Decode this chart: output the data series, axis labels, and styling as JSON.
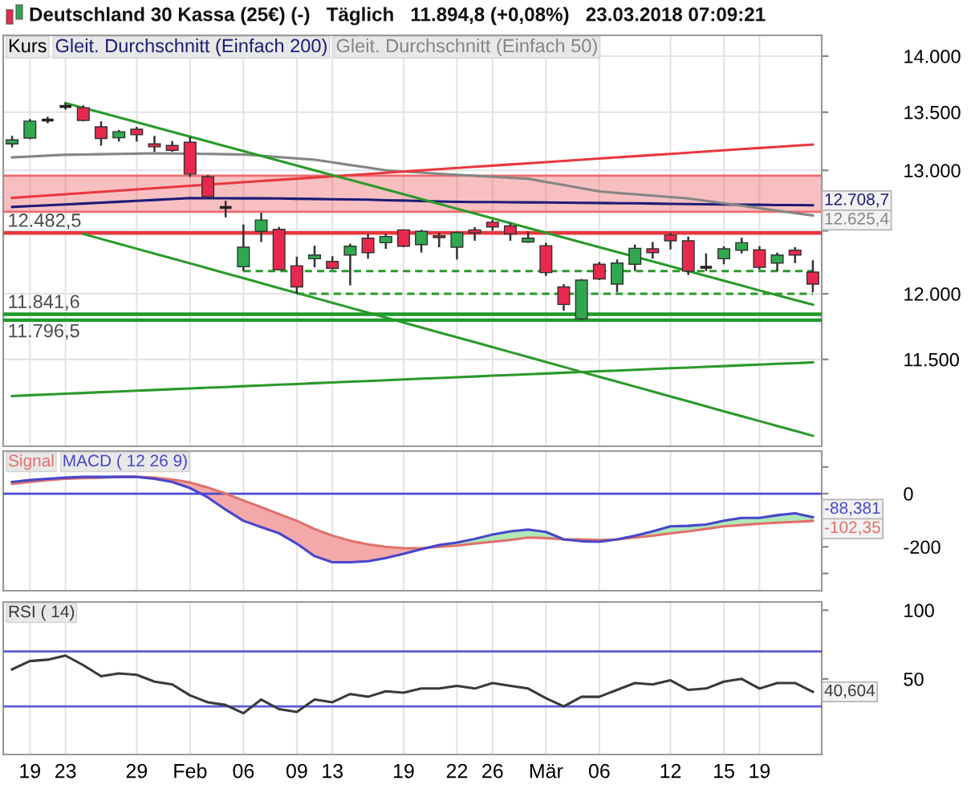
{
  "chart_data": [
    {
      "type": "candlestick",
      "title": "Deutschland 30 Kassa (25€) (-)   Täglich   11.894,8 (+0,08%)   23.03.2018 07:09:21",
      "legend": "top left",
      "log": true,
      "grid": true,
      "categories": [
        null,
        null,
        null,
        null,
        null,
        null,
        null,
        null,
        null,
        null,
        null,
        null,
        null,
        null,
        null,
        null,
        null,
        null,
        null,
        null,
        null,
        null,
        null,
        null,
        null,
        null,
        null,
        null,
        null,
        null,
        null,
        null,
        null,
        null,
        null,
        null,
        null,
        null,
        null,
        null,
        null,
        null,
        null,
        null,
        null,
        null
      ],
      "ylim": [
        10870,
        14190
      ],
      "yticks": [
        {
          "value": 11500,
          "label": "11.500"
        },
        {
          "value": 12000,
          "label": "12.000"
        },
        {
          "value": 12500,
          "label": null
        },
        {
          "value": 13000,
          "label": "13.000"
        },
        {
          "value": 13500,
          "label": "13.500"
        },
        {
          "value": 14000,
          "label": "14.000"
        }
      ],
      "bands": [
        {
          "axis": "y",
          "from": 12655,
          "to": 12956,
          "color": "#e8383d"
        }
      ],
      "ref_lines": [
        {
          "axis": "y",
          "value": 12956,
          "color": "#ec6b6f"
        },
        {
          "axis": "y",
          "value": 12655,
          "color": "#ec6b6f"
        },
        {
          "axis": "y",
          "value": 12482.5,
          "label": "12.482,5",
          "color": "#e8383d"
        },
        {
          "axis": "y",
          "value": 11841.6,
          "label": "11.841,6",
          "color": "#1f9a2a"
        },
        {
          "axis": "y",
          "value": 11796.5,
          "label": "11.796,5",
          "color": "#1f9a2a"
        }
      ],
      "series": [
        {
          "name": "Kurs",
          "ohlc": [
            [
              13225,
              13294,
              13195,
              13260
            ],
            [
              13275,
              13440,
              13265,
              13422
            ],
            [
              13431,
              13460,
              13403,
              13431
            ],
            [
              13550,
              13580,
              13522,
              13550
            ],
            [
              13540,
              13560,
              13420,
              13428
            ],
            [
              13372,
              13420,
              13210,
              13272
            ],
            [
              13278,
              13345,
              13245,
              13330
            ],
            [
              13352,
              13372,
              13245,
              13304
            ],
            [
              13225,
              13294,
              13157,
              13200
            ],
            [
              13212,
              13250,
              13157,
              13170
            ],
            [
              13239,
              13285,
              12946,
              12969
            ],
            [
              12946,
              12960,
              12770,
              12780
            ],
            [
              12691,
              12747,
              12610,
              12691
            ],
            [
              12212,
              12552,
              12178,
              12368
            ],
            [
              12496,
              12647,
              12410,
              12588
            ],
            [
              12512,
              12532,
              12185,
              12189
            ],
            [
              12220,
              12292,
              12000,
              12053
            ],
            [
              12276,
              12380,
              12208,
              12305
            ],
            [
              12254,
              12296,
              12190,
              12200
            ],
            [
              12305,
              12396,
              12066,
              12376
            ],
            [
              12441,
              12475,
              12276,
              12325
            ],
            [
              12404,
              12475,
              12355,
              12454
            ],
            [
              12508,
              12510,
              12368,
              12376
            ],
            [
              12389,
              12508,
              12325,
              12496
            ],
            [
              12460,
              12485,
              12368,
              12445
            ],
            [
              12368,
              12496,
              12270,
              12485
            ],
            [
              12508,
              12530,
              12420,
              12484
            ],
            [
              12570,
              12590,
              12500,
              12532
            ],
            [
              12540,
              12561,
              12420,
              12475
            ],
            [
              12410,
              12496,
              12404,
              12441
            ],
            [
              12380,
              12404,
              12140,
              12166
            ],
            [
              12053,
              12075,
              11869,
              11917
            ],
            [
              11807,
              12116,
              11797,
              12107
            ],
            [
              12232,
              12250,
              12107,
              12116
            ],
            [
              12075,
              12270,
              12013,
              12241
            ],
            [
              12232,
              12389,
              12178,
              12359
            ],
            [
              12355,
              12410,
              12276,
              12325
            ],
            [
              12466,
              12484,
              12350,
              12420
            ],
            [
              12420,
              12454,
              12147,
              12178
            ],
            [
              12208,
              12318,
              12178,
              12208
            ],
            [
              12276,
              12376,
              12232,
              12355
            ],
            [
              12344,
              12445,
              12318,
              12404
            ],
            [
              12347,
              12376,
              12190,
              12208
            ],
            [
              12241,
              12325,
              12178,
              12305
            ],
            [
              12344,
              12368,
              12241,
              12305
            ],
            [
              12170,
              12264,
              12013,
              12075
            ]
          ],
          "colors": [
            "#2fa84f",
            "#2fa84f",
            "#222222",
            "#222222",
            "#e8284d",
            "#e8284d",
            "#2fa84f",
            "#e8284d",
            "#e8284d",
            "#e8284d",
            "#e8284d",
            "#e8284d",
            "#222222",
            "#2fa84f",
            "#2fa84f",
            "#e8284d",
            "#e8284d",
            "#2fa84f",
            "#e8284d",
            "#2fa84f",
            "#e8284d",
            "#2fa84f",
            "#e8284d",
            "#2fa84f",
            "#e8284d",
            "#2fa84f",
            "#e8284d",
            "#e8284d",
            "#e8284d",
            "#2fa84f",
            "#e8284d",
            "#e8284d",
            "#2fa84f",
            "#e8284d",
            "#2fa84f",
            "#2fa84f",
            "#e8284d",
            "#e8284d",
            "#e8284d",
            "#222222",
            "#2fa84f",
            "#2fa84f",
            "#e8284d",
            "#2fa84f",
            "#e8284d",
            "#e8284d"
          ]
        },
        {
          "type": "line",
          "name": "Gleit. Durchschnitt (Einfach 200)",
          "color": "#1c1c78",
          "values": [
            12695,
            12702,
            12709,
            12716,
            12723,
            12730,
            12738,
            12745,
            12753,
            12760,
            12768,
            12767,
            12767,
            12766,
            12766,
            12765,
            12763,
            12761,
            12759,
            12757,
            12755,
            12751,
            12748,
            12744,
            12741,
            12737,
            12736,
            12735,
            12734,
            12733,
            12732,
            12731,
            12729,
            12728,
            12726,
            12725,
            12723,
            12721,
            12719,
            12717,
            12715,
            12714,
            12713,
            12711,
            12710,
            12708.7
          ],
          "value_labels": [
            null,
            null,
            null,
            null,
            null,
            null,
            null,
            null,
            null,
            null,
            null,
            null,
            null,
            null,
            null,
            null,
            null,
            null,
            null,
            null,
            null,
            null,
            null,
            null,
            null,
            null,
            null,
            null,
            null,
            null,
            null,
            null,
            null,
            null,
            null,
            null,
            null,
            null,
            null,
            null,
            null,
            null,
            null,
            null,
            null,
            "12.708,7"
          ]
        },
        {
          "type": "line",
          "name": "Gleit. Durchschnitt (Einfach 50)",
          "color": "#858585",
          "values": [
            13110,
            13117,
            13125,
            13132,
            13135,
            13137,
            13140,
            13142,
            13145,
            13143,
            13141,
            13139,
            13137,
            13135,
            13124,
            13112,
            13101,
            13090,
            13068,
            13045,
            13023,
            13000,
            12990,
            12981,
            12971,
            12962,
            12954,
            12946,
            12938,
            12930,
            12903,
            12877,
            12850,
            12823,
            12811,
            12800,
            12788,
            12777,
            12765,
            12745,
            12725,
            12705,
            12685,
            12665,
            12645,
            12625.4
          ],
          "value_labels": [
            null,
            null,
            null,
            null,
            null,
            null,
            null,
            null,
            null,
            null,
            null,
            null,
            null,
            null,
            null,
            null,
            null,
            null,
            null,
            null,
            null,
            null,
            null,
            null,
            null,
            null,
            null,
            null,
            null,
            null,
            null,
            null,
            null,
            null,
            null,
            null,
            null,
            null,
            null,
            null,
            null,
            null,
            null,
            null,
            null,
            "12.625,4"
          ]
        },
        {
          "type": "line",
          "color": "#e8383d",
          "values": [
            12770,
            12780,
            12790,
            12800,
            12810,
            12820,
            12830,
            12840,
            12850,
            12860,
            12870,
            12880,
            12890,
            12900,
            12910,
            12920,
            12930,
            12940,
            12950,
            12960,
            12970,
            12980,
            12990,
            13000,
            13010,
            13020,
            13030,
            13040,
            13050,
            13060,
            13070,
            13080,
            13090,
            13100,
            13110,
            13120,
            13130,
            13140,
            13150,
            13160,
            13170,
            13180,
            13190,
            13200,
            13210,
            13220
          ]
        },
        {
          "type": "line",
          "color": "#2a9a2a",
          "values": [
            null,
            null,
            null,
            13580,
            13538,
            13496,
            13454,
            13412,
            13370,
            13329,
            13287,
            13246,
            13205,
            13164,
            13123,
            13082,
            13041,
            13000,
            12960,
            12920,
            12880,
            12840,
            12800,
            12760,
            12720,
            12680,
            12641,
            12602,
            12563,
            12524,
            12485,
            12446,
            12407,
            12368,
            12330,
            12292,
            12254,
            12216,
            12178,
            12140,
            12102,
            12064,
            12026,
            11989,
            11952,
            11915
          ]
        },
        {
          "type": "line",
          "color": "#2a9a2a",
          "values": [
            null,
            null,
            null,
            null,
            12475,
            12435,
            12395,
            12356,
            12317,
            12278,
            12239,
            12200,
            12161,
            12122,
            12083,
            12044,
            12006,
            11968,
            11930,
            11892,
            11854,
            11816,
            11778,
            11740,
            11703,
            11666,
            11629,
            11592,
            11555,
            11518,
            11481,
            11444,
            11407,
            11371,
            11335,
            11299,
            11263,
            11227,
            11191,
            11155,
            11119,
            11084,
            11049,
            11014,
            10979,
            10944
          ]
        },
        {
          "type": "line",
          "color": "#2a9a2a",
          "values": [
            11230,
            11236,
            11241,
            11247,
            11252,
            11258,
            11263,
            11269,
            11274,
            11280,
            11285,
            11291,
            11296,
            11302,
            11307,
            11313,
            11318,
            11324,
            11329,
            11335,
            11340,
            11346,
            11351,
            11357,
            11362,
            11368,
            11373,
            11379,
            11384,
            11390,
            11395,
            11401,
            11406,
            11412,
            11417,
            11423,
            11428,
            11434,
            11439,
            11445,
            11450,
            11456,
            11461,
            11467,
            11472,
            11478
          ]
        },
        {
          "type": "line",
          "color": "#2a9a2a",
          "line_style": "dashed",
          "values": [
            null,
            null,
            null,
            null,
            null,
            null,
            null,
            null,
            null,
            null,
            null,
            null,
            null,
            12178,
            12178,
            12178,
            12178,
            12178,
            12178,
            12178,
            12178,
            12178,
            12178,
            12178,
            12178,
            12178,
            12178,
            12178,
            12178,
            12178,
            12178,
            12178,
            12178,
            12178,
            12178,
            12178,
            12178,
            12178,
            12178,
            12178,
            12178,
            12178,
            12178,
            12178,
            12178,
            12178
          ]
        },
        {
          "type": "line",
          "color": "#2a9a2a",
          "line_style": "dashed",
          "values": [
            null,
            null,
            null,
            null,
            null,
            null,
            null,
            null,
            null,
            null,
            null,
            null,
            null,
            null,
            null,
            null,
            12000,
            12000,
            12000,
            12000,
            12000,
            12000,
            12000,
            12000,
            12000,
            12000,
            12000,
            12000,
            12000,
            12000,
            12000,
            12000,
            12000,
            12000,
            12000,
            12000,
            12000,
            12000,
            12000,
            12000,
            12000,
            12000,
            12000,
            12000,
            12000,
            12000
          ]
        }
      ]
    },
    {
      "type": "line",
      "legend": "top left",
      "grid": "x",
      "categories": [
        null,
        null,
        null,
        null,
        null,
        null,
        null,
        null,
        null,
        null,
        null,
        null,
        null,
        null,
        null,
        null,
        null,
        null,
        null,
        null,
        null,
        null,
        null,
        null,
        null,
        null,
        null,
        null,
        null,
        null,
        null,
        null,
        null,
        null,
        null,
        null,
        null,
        null,
        null,
        null,
        null,
        null,
        null,
        null,
        null,
        null
      ],
      "ylim": [
        -365,
        160
      ],
      "yticks": [
        {
          "value": 100,
          "label": null
        },
        0,
        {
          "value": -100,
          "label": null
        },
        -200,
        {
          "value": -300,
          "label": null
        }
      ],
      "ref_lines": [
        {
          "axis": "y",
          "value": 0,
          "color": "#4b4bd2"
        }
      ],
      "series": [
        {
          "name": "Signal",
          "color": "#e2706a",
          "values": [
            37,
            44,
            51,
            56,
            58,
            60,
            63,
            63,
            60,
            53,
            42,
            23,
            0,
            -26,
            -51,
            -77,
            -102,
            -133,
            -158,
            -177,
            -191,
            -200,
            -205,
            -205,
            -200,
            -195,
            -188,
            -181,
            -174,
            -165,
            -167,
            -172,
            -172,
            -174,
            -172,
            -165,
            -158,
            -149,
            -142,
            -133,
            -123,
            -118,
            -113,
            -109,
            -106,
            -102.35
          ],
          "value_labels": [
            null,
            null,
            null,
            null,
            null,
            null,
            null,
            null,
            null,
            null,
            null,
            null,
            null,
            null,
            null,
            null,
            null,
            null,
            null,
            null,
            null,
            null,
            null,
            null,
            null,
            null,
            null,
            null,
            null,
            null,
            null,
            null,
            null,
            null,
            null,
            null,
            null,
            null,
            null,
            null,
            null,
            null,
            null,
            null,
            null,
            "-102,35"
          ]
        },
        {
          "name": "MACD ( 12 26 9)",
          "color": "#4646cc",
          "values": [
            44,
            51,
            56,
            60,
            63,
            63,
            63,
            63,
            56,
            44,
            21,
            -14,
            -60,
            -102,
            -126,
            -149,
            -188,
            -235,
            -258,
            -258,
            -254,
            -242,
            -226,
            -209,
            -193,
            -184,
            -170,
            -154,
            -142,
            -135,
            -144,
            -172,
            -179,
            -181,
            -172,
            -158,
            -142,
            -123,
            -121,
            -116,
            -102,
            -91,
            -91,
            -81,
            -74,
            -88.381
          ],
          "value_labels": [
            null,
            null,
            null,
            null,
            null,
            null,
            null,
            null,
            null,
            null,
            null,
            null,
            null,
            null,
            null,
            null,
            null,
            null,
            null,
            null,
            null,
            null,
            null,
            null,
            null,
            null,
            null,
            null,
            null,
            null,
            null,
            null,
            null,
            null,
            null,
            null,
            null,
            null,
            null,
            null,
            null,
            null,
            null,
            null,
            null,
            "-88,381"
          ]
        }
      ]
    },
    {
      "type": "line",
      "legend": "top left",
      "grid": "x",
      "categories": [
        null,
        "19",
        null,
        "23",
        null,
        null,
        null,
        "29",
        null,
        null,
        "Feb",
        null,
        null,
        "06",
        null,
        null,
        "09",
        null,
        "13",
        null,
        null,
        null,
        "19",
        null,
        null,
        "22",
        null,
        "26",
        null,
        null,
        "Mär",
        null,
        null,
        "06",
        null,
        null,
        null,
        "12",
        null,
        null,
        "15",
        null,
        "19",
        null,
        null,
        null
      ],
      "ylim": [
        -5,
        106
      ],
      "yticks": [
        50,
        100
      ],
      "ref_lines": [
        {
          "axis": "y",
          "value": 70,
          "color": "#5b5bd6"
        },
        {
          "axis": "y",
          "value": 30,
          "color": "#5b5bd6"
        }
      ],
      "series": [
        {
          "name": "RSI ( 14)",
          "color": "#3a3a3a",
          "values": [
            57,
            63,
            64,
            67,
            60,
            52,
            54,
            53,
            48,
            46,
            38,
            33,
            31,
            25,
            35,
            28,
            26,
            35,
            33,
            39,
            37,
            41,
            40,
            43,
            43,
            45,
            43,
            47,
            45,
            43,
            36,
            30,
            37,
            37,
            42,
            47,
            46,
            49,
            42,
            43,
            48,
            50,
            43,
            47,
            47,
            40.604
          ],
          "value_labels": [
            null,
            null,
            null,
            null,
            null,
            null,
            null,
            null,
            null,
            null,
            null,
            null,
            null,
            null,
            null,
            null,
            null,
            null,
            null,
            null,
            null,
            null,
            null,
            null,
            null,
            null,
            null,
            null,
            null,
            null,
            null,
            null,
            null,
            null,
            null,
            null,
            null,
            null,
            null,
            null,
            null,
            null,
            null,
            null,
            null,
            "40,604"
          ]
        }
      ]
    }
  ]
}
